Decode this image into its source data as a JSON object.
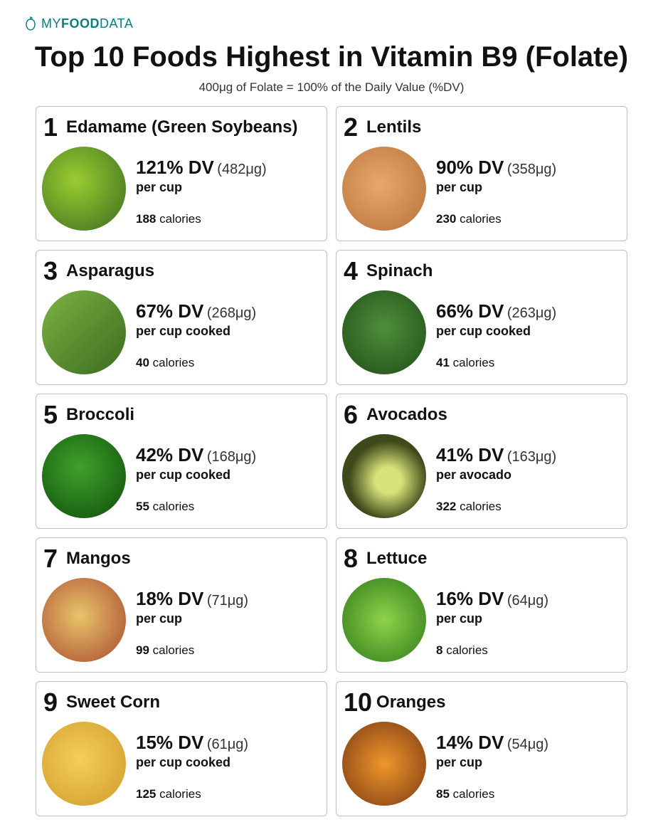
{
  "logo": {
    "prefix": "MY",
    "bold": "FOOD",
    "suffix": "DATA",
    "color": "#0b7d7a"
  },
  "title": "Top 10 Foods Highest in Vitamin B9 (Folate)",
  "subtitle": "400μg of Folate = 100% of the Daily Value (%DV)",
  "card_border_color": "#bfbfbf",
  "foods": [
    {
      "rank": "1",
      "name": "Edamame (Green Soybeans)",
      "dv_pct": "121% DV",
      "dv_amt": "(482μg)",
      "serving": "per cup",
      "calories": "188",
      "img_bg": "radial-gradient(circle at 40% 40%, #9acd32, #3b6b1f)"
    },
    {
      "rank": "2",
      "name": "Lentils",
      "dv_pct": "90% DV",
      "dv_amt": "(358μg)",
      "serving": "per cup",
      "calories": "230",
      "img_bg": "radial-gradient(circle at 45% 45%, #e8a86a, #b6713c)"
    },
    {
      "rank": "3",
      "name": "Asparagus",
      "dv_pct": "67% DV",
      "dv_amt": "(268μg)",
      "serving": "per cup cooked",
      "calories": "40",
      "img_bg": "linear-gradient(135deg, #7cb342, #3a6b1f)"
    },
    {
      "rank": "4",
      "name": "Spinach",
      "dv_pct": "66% DV",
      "dv_amt": "(263μg)",
      "serving": "per cup cooked",
      "calories": "41",
      "img_bg": "radial-gradient(circle at 50% 45%, #4f8f3a, #1e4d17)"
    },
    {
      "rank": "5",
      "name": "Broccoli",
      "dv_pct": "42% DV",
      "dv_amt": "(168μg)",
      "serving": "per cup cooked",
      "calories": "55",
      "img_bg": "radial-gradient(circle at 45% 40%, #3fa12c, #0e4d0a)"
    },
    {
      "rank": "6",
      "name": "Avocados",
      "dv_pct": "41% DV",
      "dv_amt": "(163μg)",
      "serving": "per avocado",
      "calories": "322",
      "img_bg": "radial-gradient(circle at 55% 55%, #d8e27a 20%, #3e4a1a 60%)"
    },
    {
      "rank": "7",
      "name": "Mangos",
      "dv_pct": "18% DV",
      "dv_amt": "(71μg)",
      "serving": "per cup",
      "calories": "99",
      "img_bg": "radial-gradient(circle at 45% 45%, #e8c56a, #a8472f)"
    },
    {
      "rank": "8",
      "name": "Lettuce",
      "dv_pct": "16% DV",
      "dv_amt": "(64μg)",
      "serving": "per cup",
      "calories": "8",
      "img_bg": "radial-gradient(circle at 50% 50%, #8fd34a, #2f7a1a)"
    },
    {
      "rank": "9",
      "name": "Sweet Corn",
      "dv_pct": "15% DV",
      "dv_amt": "(61μg)",
      "serving": "per cup cooked",
      "calories": "125",
      "img_bg": "radial-gradient(circle at 45% 45%, #f3cf5a, #d19a2a)"
    },
    {
      "rank": "10",
      "name": "Oranges",
      "dv_pct": "14% DV",
      "dv_amt": "(54μg)",
      "serving": "per cup",
      "calories": "85",
      "img_bg": "radial-gradient(circle at 50% 50%, #f0962c, #7a3a12)"
    }
  ],
  "calories_word": "calories"
}
